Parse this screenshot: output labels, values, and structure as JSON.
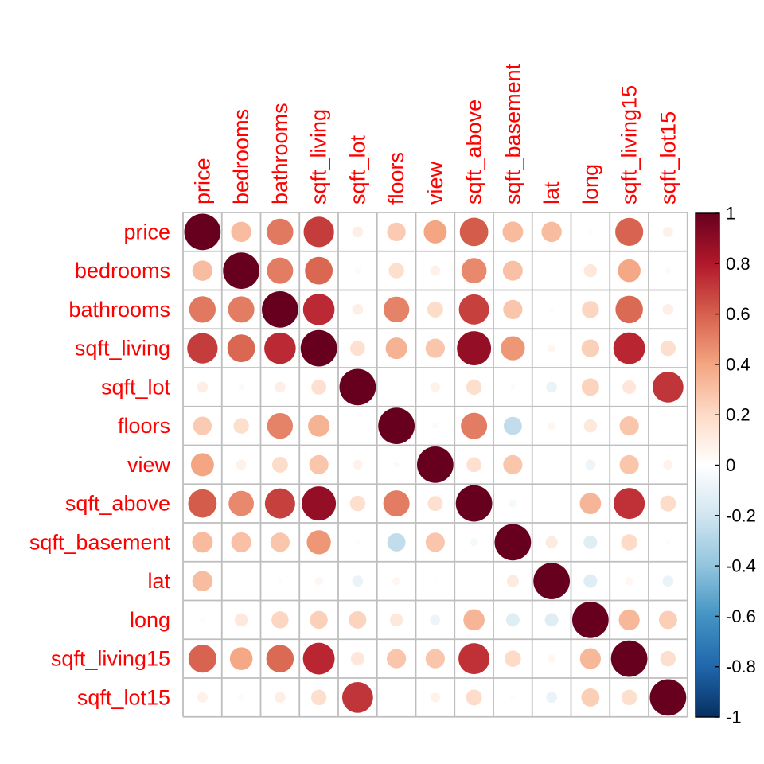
{
  "chart_data": {
    "type": "heatmap",
    "style": "correlation matrix, circle glyphs (area and color encode coefficient)",
    "variables": [
      "price",
      "bedrooms",
      "bathrooms",
      "sqft_living",
      "sqft_lot",
      "floors",
      "view",
      "sqft_above",
      "sqft_basement",
      "lat",
      "long",
      "sqft_living15",
      "sqft_lot15"
    ],
    "matrix": [
      [
        1.0,
        0.31,
        0.53,
        0.7,
        0.09,
        0.26,
        0.4,
        0.61,
        0.32,
        0.31,
        0.02,
        0.59,
        0.08
      ],
      [
        0.31,
        1.0,
        0.52,
        0.58,
        0.03,
        0.18,
        0.08,
        0.48,
        0.3,
        -0.01,
        0.13,
        0.39,
        0.03
      ],
      [
        0.53,
        0.52,
        1.0,
        0.75,
        0.09,
        0.5,
        0.19,
        0.69,
        0.28,
        0.02,
        0.22,
        0.57,
        0.09
      ],
      [
        0.7,
        0.58,
        0.75,
        1.0,
        0.17,
        0.35,
        0.28,
        0.88,
        0.44,
        0.05,
        0.24,
        0.76,
        0.18
      ],
      [
        0.09,
        0.03,
        0.09,
        0.17,
        1.0,
        -0.01,
        0.07,
        0.18,
        0.02,
        -0.09,
        0.23,
        0.14,
        0.72
      ],
      [
        0.26,
        0.18,
        0.5,
        0.35,
        -0.01,
        1.0,
        0.03,
        0.52,
        -0.25,
        0.05,
        0.13,
        0.28,
        -0.01
      ],
      [
        0.4,
        0.08,
        0.19,
        0.28,
        0.07,
        0.03,
        1.0,
        0.17,
        0.28,
        0.01,
        -0.08,
        0.28,
        0.07
      ],
      [
        0.61,
        0.48,
        0.69,
        0.88,
        0.18,
        0.52,
        0.17,
        1.0,
        -0.05,
        -0.0,
        0.34,
        0.73,
        0.19
      ],
      [
        0.32,
        0.3,
        0.28,
        0.44,
        0.02,
        -0.25,
        0.28,
        -0.05,
        1.0,
        0.11,
        -0.14,
        0.2,
        0.02
      ],
      [
        0.31,
        -0.01,
        0.02,
        0.05,
        -0.09,
        0.05,
        0.01,
        -0.0,
        0.11,
        1.0,
        -0.14,
        0.05,
        -0.09
      ],
      [
        0.02,
        0.13,
        0.22,
        0.24,
        0.23,
        0.13,
        -0.08,
        0.34,
        -0.14,
        -0.14,
        1.0,
        0.33,
        0.25
      ],
      [
        0.59,
        0.39,
        0.57,
        0.76,
        0.14,
        0.28,
        0.28,
        0.73,
        0.2,
        0.05,
        0.33,
        1.0,
        0.18
      ],
      [
        0.08,
        0.03,
        0.09,
        0.18,
        0.72,
        -0.01,
        0.07,
        0.19,
        0.02,
        -0.09,
        0.25,
        0.18,
        1.0
      ]
    ],
    "colorbar": {
      "range": [
        -1,
        1
      ],
      "ticks": [
        "1",
        "0.8",
        "0.6",
        "0.4",
        "0.2",
        "0",
        "-0.2",
        "-0.4",
        "-0.6",
        "-0.8",
        "-1"
      ],
      "colors": [
        "#67001F",
        "#B2182B",
        "#D6604D",
        "#F4A582",
        "#FDDBC7",
        "#FFFFFF",
        "#D1E5F0",
        "#92C5DE",
        "#4393C3",
        "#2166AC",
        "#053061"
      ]
    },
    "label_color": "#FF0000",
    "grid_color": "#BEBEBE",
    "title": "",
    "xlabel": "",
    "ylabel": ""
  }
}
